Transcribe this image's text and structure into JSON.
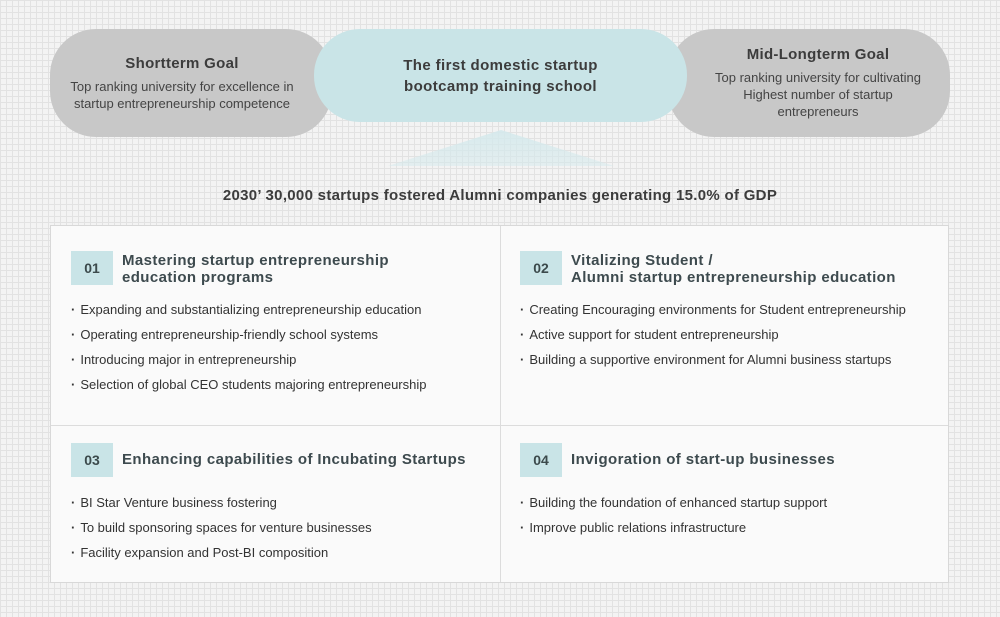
{
  "goals": {
    "short": {
      "title": "Shortterm Goal",
      "text": "Top ranking university for excellence in startup entrepreneurship competence"
    },
    "center": {
      "line1": "The first domestic startup",
      "line2": "bootcamp training school"
    },
    "long": {
      "title": "Mid-Longterm Goal",
      "text": "Top ranking university for cultivating Highest number of startup entrepreneurs"
    }
  },
  "vision": "2030’ 30,000 startups fostered Alumni companies generating 15.0% of GDP",
  "colors": {
    "accent": "#c9e4e7",
    "goal_gray": "#c8c8c8",
    "arrow": "#cfe6e9"
  },
  "quadrants": [
    {
      "number": "01",
      "title_line1": "Mastering startup entrepreneurship",
      "title_line2": "education programs",
      "items": [
        "Expanding and substantializing entrepreneurship education",
        "Operating entrepreneurship-friendly school systems",
        "Introducing major in entrepreneurship",
        "Selection of global CEO students majoring entrepreneurship"
      ]
    },
    {
      "number": "02",
      "title_line1": "Vitalizing Student /",
      "title_line2": "Alumni startup entrepreneurship education",
      "items": [
        "Creating Encouraging environments for Student entrepreneurship",
        "Active support for student entrepreneurship",
        "Building a supportive environment for Alumni business startups"
      ]
    },
    {
      "number": "03",
      "title_line1": "Enhancing capabilities of Incubating Startups",
      "title_line2": "",
      "items": [
        "BI Star Venture business fostering",
        "To build sponsoring spaces for venture businesses",
        "Facility expansion and Post-BI composition"
      ]
    },
    {
      "number": "04",
      "title_line1": "Invigoration of start-up businesses",
      "title_line2": "",
      "items": [
        "Building the foundation of enhanced startup support",
        "Improve public relations infrastructure"
      ]
    }
  ]
}
